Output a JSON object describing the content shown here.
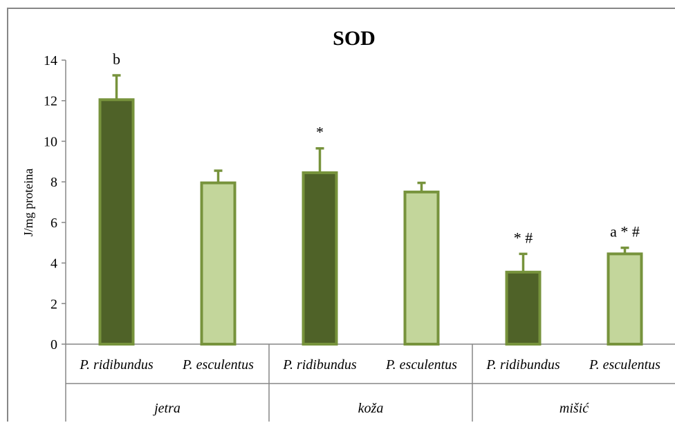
{
  "chart_data": {
    "type": "bar",
    "title": "SOD",
    "xlabel": "",
    "ylabel": "J/mg  proteina",
    "ylim": [
      0,
      14
    ],
    "yticks": [
      "0",
      "2",
      "4",
      "6",
      "8",
      "10",
      "12",
      "14"
    ],
    "grid": false,
    "legend": "none",
    "groups": [
      {
        "label": "jetra",
        "bars": [
          {
            "category": "P. ridibundus",
            "value": 12.05,
            "error": 1.2,
            "annotation": "b",
            "color": "#4f6228"
          },
          {
            "category": "P. esculentus",
            "value": 7.95,
            "error": 0.6,
            "annotation": "",
            "color": "#c3d69b"
          }
        ]
      },
      {
        "label": "koža",
        "bars": [
          {
            "category": "P. ridibundus",
            "value": 8.45,
            "error": 1.2,
            "annotation": "*",
            "color": "#4f6228"
          },
          {
            "category": "P. esculentus",
            "value": 7.5,
            "error": 0.45,
            "annotation": "",
            "color": "#c3d69b"
          }
        ]
      },
      {
        "label": "mišić",
        "bars": [
          {
            "category": "P. ridibundus",
            "value": 3.55,
            "error": 0.9,
            "annotation": "*  #",
            "color": "#4f6228"
          },
          {
            "category": "P. esculentus",
            "value": 4.45,
            "error": 0.3,
            "annotation": "a * #",
            "color": "#c3d69b"
          }
        ]
      }
    ],
    "colors": {
      "bar_outline": "#77933c",
      "error_bar": "#77933c",
      "axis": "#868686",
      "frame": "#868686"
    }
  }
}
